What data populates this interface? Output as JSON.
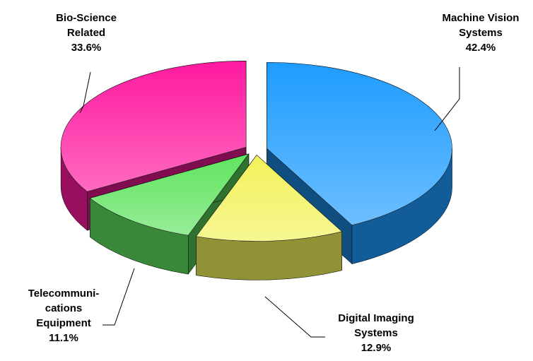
{
  "chart_data": {
    "type": "pie3d",
    "categories": [
      [
        "Machine Vision",
        "Systems"
      ],
      [
        "Digital Imaging",
        "Systems"
      ],
      [
        "Telecommuni-",
        "cations",
        "Equipment"
      ],
      [
        "Bio-Science",
        "Related"
      ]
    ],
    "values": [
      42.4,
      12.9,
      11.1,
      33.6
    ],
    "value_labels": [
      "42.4%",
      "12.9%",
      "11.1%",
      "33.6%"
    ],
    "colors": [
      "#1e9cff",
      "#f2f25a",
      "#5fe35f",
      "#ff1aa0"
    ]
  }
}
